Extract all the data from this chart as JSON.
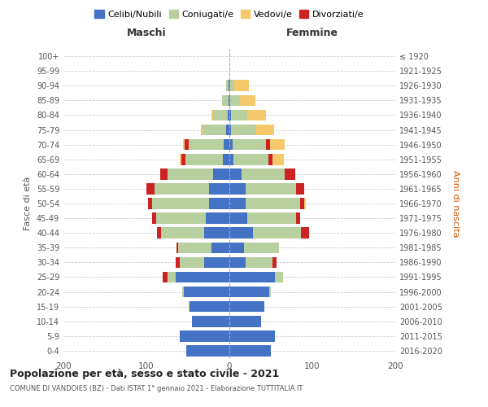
{
  "age_groups": [
    "0-4",
    "5-9",
    "10-14",
    "15-19",
    "20-24",
    "25-29",
    "30-34",
    "35-39",
    "40-44",
    "45-49",
    "50-54",
    "55-59",
    "60-64",
    "65-69",
    "70-74",
    "75-79",
    "80-84",
    "85-89",
    "90-94",
    "95-99",
    "100+"
  ],
  "birth_years": [
    "2016-2020",
    "2011-2015",
    "2006-2010",
    "2001-2005",
    "1996-2000",
    "1991-1995",
    "1986-1990",
    "1981-1985",
    "1976-1980",
    "1971-1975",
    "1966-1970",
    "1961-1965",
    "1956-1960",
    "1951-1955",
    "1946-1950",
    "1941-1945",
    "1936-1940",
    "1931-1935",
    "1926-1930",
    "1921-1925",
    "≤ 1920"
  ],
  "male": {
    "celibi": [
      52,
      60,
      45,
      48,
      55,
      65,
      30,
      22,
      30,
      28,
      25,
      25,
      20,
      8,
      7,
      4,
      2,
      1,
      1,
      0,
      0
    ],
    "coniugati": [
      0,
      0,
      0,
      0,
      2,
      10,
      30,
      40,
      52,
      60,
      68,
      65,
      55,
      45,
      42,
      28,
      18,
      8,
      3,
      0,
      0
    ],
    "vedovi": [
      0,
      0,
      0,
      1,
      0,
      0,
      0,
      0,
      0,
      0,
      0,
      0,
      0,
      2,
      2,
      2,
      2,
      0,
      0,
      0,
      0
    ],
    "divorziati": [
      0,
      0,
      0,
      0,
      0,
      5,
      5,
      2,
      5,
      5,
      5,
      10,
      8,
      5,
      5,
      0,
      0,
      0,
      0,
      0,
      0
    ]
  },
  "female": {
    "nubili": [
      50,
      55,
      38,
      42,
      48,
      55,
      20,
      18,
      28,
      22,
      20,
      20,
      15,
      5,
      4,
      2,
      2,
      1,
      1,
      0,
      0
    ],
    "coniugate": [
      0,
      0,
      0,
      0,
      2,
      10,
      32,
      42,
      58,
      58,
      65,
      60,
      52,
      42,
      40,
      30,
      20,
      12,
      5,
      0,
      0
    ],
    "vedove": [
      0,
      0,
      0,
      0,
      0,
      0,
      0,
      0,
      0,
      0,
      2,
      0,
      0,
      14,
      18,
      22,
      22,
      18,
      18,
      0,
      0
    ],
    "divorziate": [
      0,
      0,
      0,
      0,
      0,
      0,
      5,
      0,
      10,
      5,
      5,
      10,
      12,
      5,
      5,
      0,
      0,
      0,
      0,
      0,
      0
    ]
  },
  "colors": {
    "celibi_nubili": "#4472c4",
    "coniugati": "#b8cfa0",
    "vedovi": "#f5c96a",
    "divorziati": "#cc2222"
  },
  "xlim": 200,
  "title": "Popolazione per età, sesso e stato civile - 2021",
  "subtitle": "COMUNE DI VANDOIES (BZ) - Dati ISTAT 1° gennaio 2021 - Elaborazione TUTTITALIA.IT",
  "ylabel_left": "Fasce di età",
  "ylabel_right": "Anni di nascita",
  "xlabel_left": "Maschi",
  "xlabel_right": "Femmine"
}
